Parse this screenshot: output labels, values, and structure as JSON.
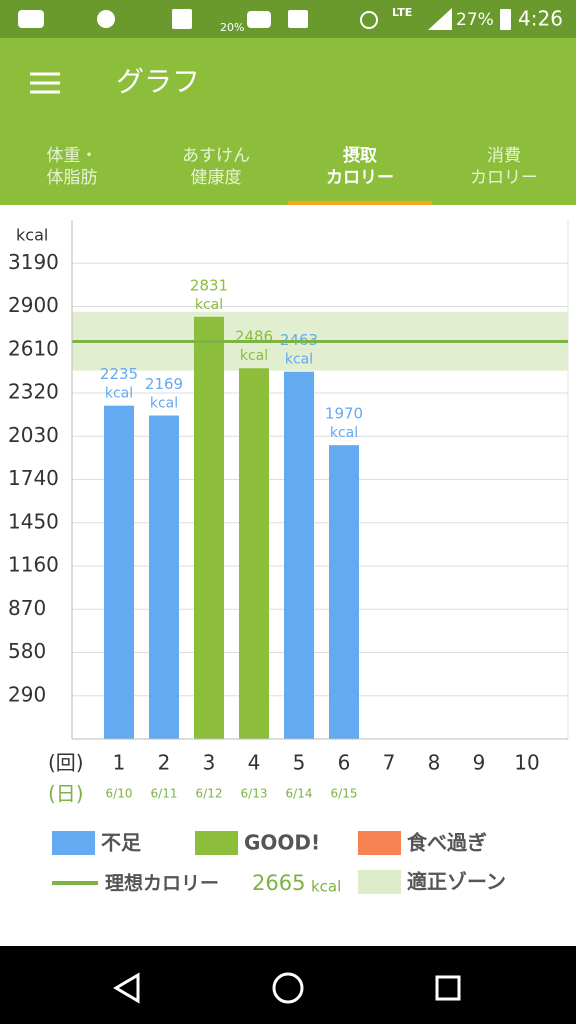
{
  "status_bar": {
    "weather_percent": "20%",
    "network": "LTE",
    "battery": "27%",
    "time": "4:26"
  },
  "app_bar": {
    "title": "グラフ"
  },
  "tabs": [
    {
      "lines": [
        "体重・",
        "体脂肪"
      ],
      "selected": false
    },
    {
      "lines": [
        "あすけん",
        "健康度"
      ],
      "selected": false
    },
    {
      "lines": [
        "摂取",
        "カロリー"
      ],
      "selected": true
    },
    {
      "lines": [
        "消費",
        "カロリー"
      ],
      "selected": false
    }
  ],
  "chart_data": {
    "type": "bar",
    "ylabel": "kcal",
    "x_row_labels": [
      "(回)",
      "(日)"
    ],
    "categories": [
      "1",
      "2",
      "3",
      "4",
      "5",
      "6",
      "7",
      "8",
      "9",
      "10"
    ],
    "dates": [
      "6/10",
      "6/11",
      "6/12",
      "6/13",
      "6/14",
      "6/15",
      null,
      null,
      null,
      null
    ],
    "values": [
      2235,
      2169,
      2831,
      2486,
      2463,
      1970,
      null,
      null,
      null,
      null
    ],
    "colors": [
      "#64aaf0",
      "#64aaf0",
      "#8cbe3c",
      "#8cbe3c",
      "#64aaf0",
      "#64aaf0",
      null,
      null,
      null,
      null
    ],
    "value_unit": "kcal",
    "ylim": [
      0,
      3480
    ],
    "yticks": [
      290,
      580,
      870,
      1160,
      1450,
      1740,
      2030,
      2320,
      2610,
      2900,
      3190
    ],
    "grid": true,
    "ideal": {
      "name": "理想カロリー",
      "value": 2665,
      "unit": "kcal",
      "color": "#7cb342"
    },
    "zone": {
      "name": "適正ゾーン",
      "range": [
        2470,
        2865
      ],
      "color": "#dcebc8"
    },
    "legend": [
      {
        "name": "不足",
        "color": "#64aaf0"
      },
      {
        "name": "GOOD!",
        "color": "#8cbe3c"
      },
      {
        "name": "食べ過ぎ",
        "color": "#f58250"
      }
    ]
  }
}
